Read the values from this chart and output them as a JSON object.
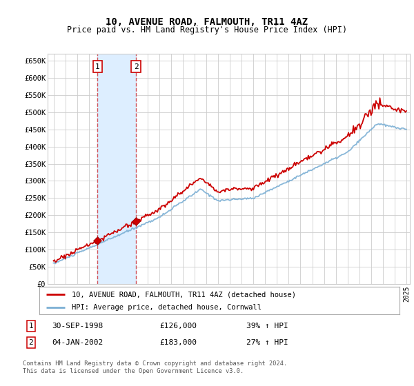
{
  "title": "10, AVENUE ROAD, FALMOUTH, TR11 4AZ",
  "subtitle": "Price paid vs. HM Land Registry's House Price Index (HPI)",
  "legend_line1": "10, AVENUE ROAD, FALMOUTH, TR11 4AZ (detached house)",
  "legend_line2": "HPI: Average price, detached house, Cornwall",
  "sale1_label": "1",
  "sale1_date": "30-SEP-1998",
  "sale1_price": "£126,000",
  "sale1_hpi": "39% ↑ HPI",
  "sale2_label": "2",
  "sale2_date": "04-JAN-2002",
  "sale2_price": "£183,000",
  "sale2_hpi": "27% ↑ HPI",
  "footer1": "Contains HM Land Registry data © Crown copyright and database right 2024.",
  "footer2": "This data is licensed under the Open Government Licence v3.0.",
  "hpi_color": "#7bafd4",
  "price_color": "#cc0000",
  "shaded_region_color": "#ddeeff",
  "grid_color": "#cccccc",
  "background_color": "#ffffff",
  "ylim": [
    0,
    670000
  ],
  "yticks": [
    0,
    50000,
    100000,
    150000,
    200000,
    250000,
    300000,
    350000,
    400000,
    450000,
    500000,
    550000,
    600000,
    650000
  ],
  "sale1_x": 1998.75,
  "sale1_y": 126000,
  "sale2_x": 2002.01,
  "sale2_y": 183000,
  "xmin": 1995,
  "xmax": 2025
}
